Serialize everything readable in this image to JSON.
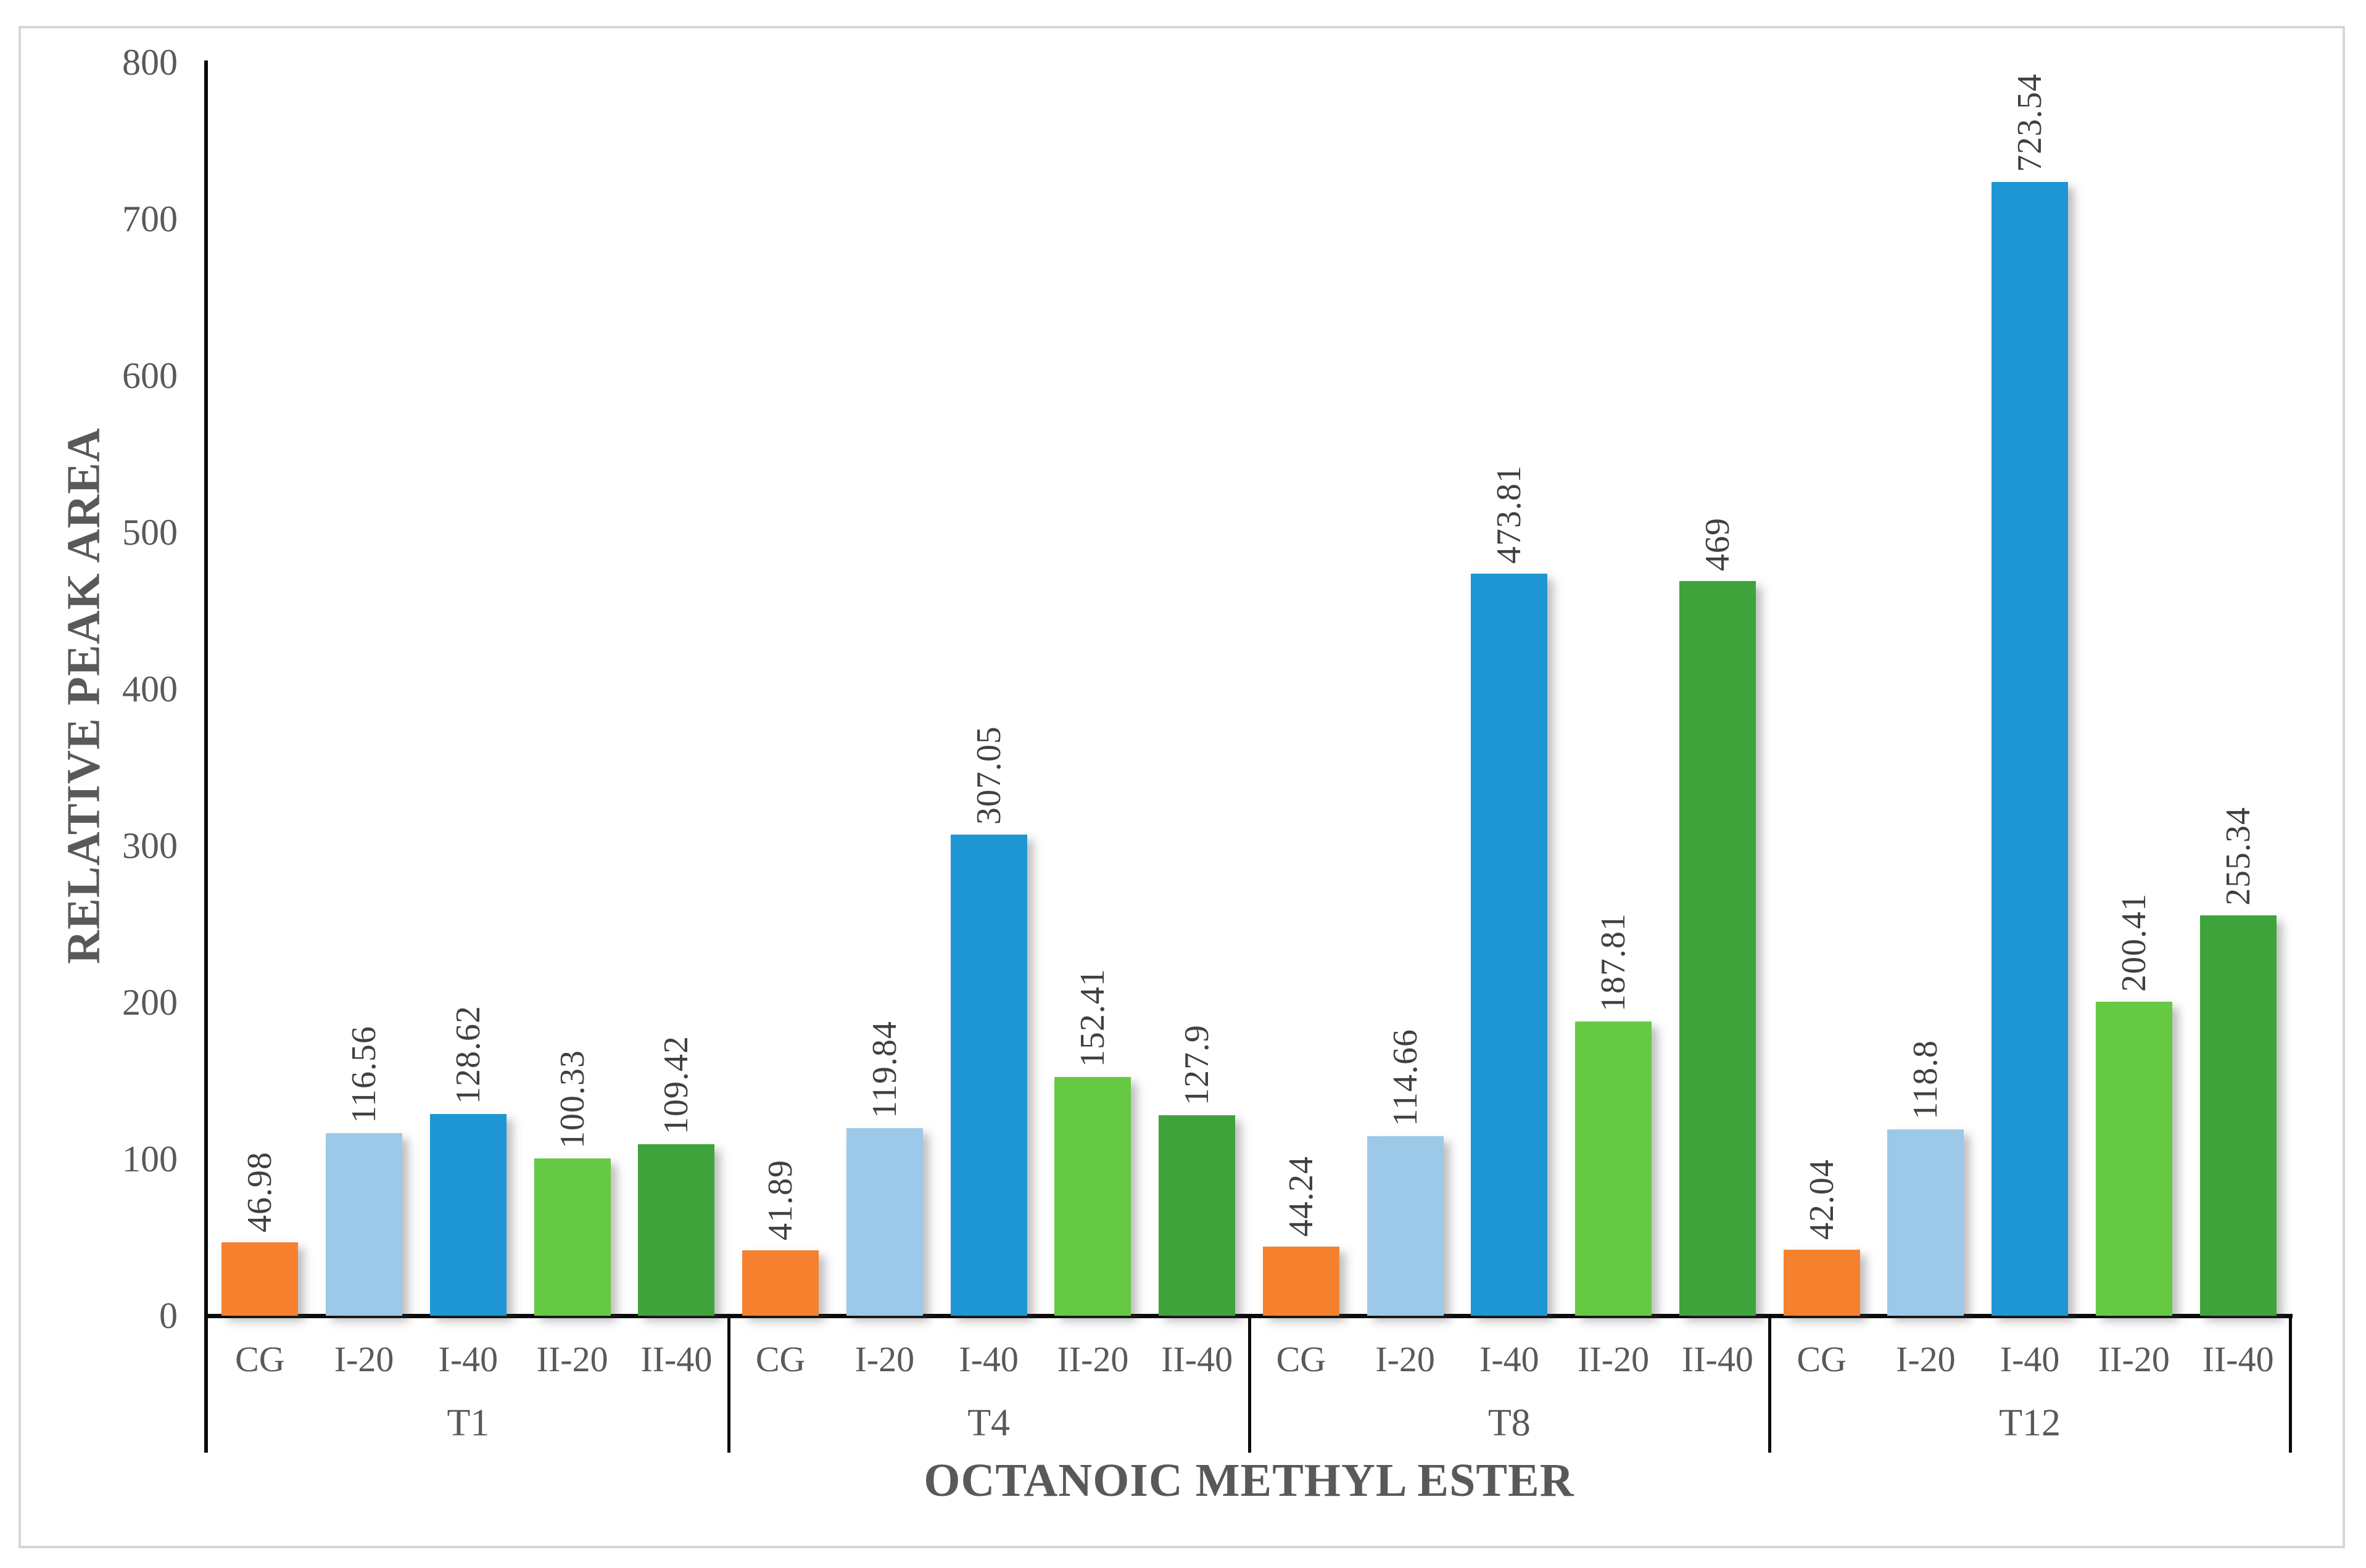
{
  "chart_data": {
    "type": "bar",
    "title": "",
    "ylabel": "RELATIVE PEAK AREA",
    "xlabel": "OCTANOIC METHYL ESTER",
    "ylim": [
      0,
      800
    ],
    "ytick_step": 100,
    "ytick_labels": [
      "0",
      "100",
      "200",
      "300",
      "400",
      "500",
      "600",
      "700",
      "800"
    ],
    "grid": false,
    "legend": "none",
    "value_labels_rotated": true,
    "bar_categories": [
      "CG",
      "I-20",
      "I-40",
      "II-20",
      "II-40"
    ],
    "bar_colors": [
      "#F5812F",
      "#9DC9E8",
      "#1E96D3",
      "#66C943",
      "#3FA33C"
    ],
    "groups": [
      {
        "label": "T1",
        "values": [
          46.98,
          116.56,
          128.62,
          100.33,
          109.42
        ]
      },
      {
        "label": "T4",
        "values": [
          41.89,
          119.84,
          307.05,
          152.41,
          127.9
        ]
      },
      {
        "label": "T8",
        "values": [
          44.24,
          114.66,
          473.81,
          187.81,
          469
        ]
      },
      {
        "label": "T12",
        "values": [
          42.04,
          118.8,
          723.54,
          200.41,
          255.34
        ]
      }
    ],
    "colors": {
      "axis_line": "#0b0b0b",
      "tick_text": "#595959",
      "value_text": "#404040",
      "title_text": "#595959",
      "frame_border": "#d6d6d6"
    }
  }
}
